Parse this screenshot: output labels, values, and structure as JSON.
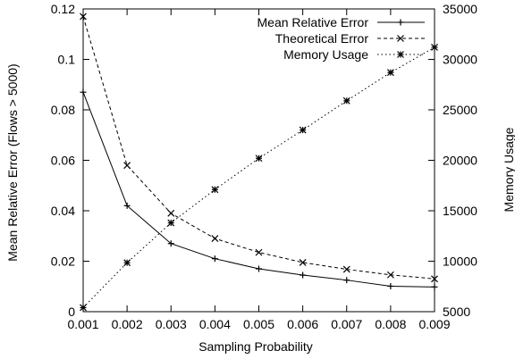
{
  "chart_data": {
    "type": "line",
    "title": "",
    "xlabel": "Sampling Probability",
    "ylabel": "Mean Relative Error (Flows > 5000)",
    "y2label": "Memory Usage",
    "x": [
      0.001,
      0.002,
      0.003,
      0.004,
      0.005,
      0.006,
      0.007,
      0.008,
      0.009
    ],
    "xlim": [
      0.001,
      0.009
    ],
    "ylim": [
      0,
      0.12
    ],
    "y2lim": [
      5000,
      35000
    ],
    "x_ticks": [
      "0.001",
      "0.002",
      "0.003",
      "0.004",
      "0.005",
      "0.006",
      "0.007",
      "0.008",
      "0.009"
    ],
    "y_ticks": [
      "0",
      "0.02",
      "0.04",
      "0.06",
      "0.08",
      "0.1",
      "0.12"
    ],
    "y2_ticks": [
      "5000",
      "10000",
      "15000",
      "20000",
      "25000",
      "30000",
      "35000"
    ],
    "legend_position": "top-right",
    "grid": false,
    "series": [
      {
        "name": "Mean Relative Error",
        "axis": "left",
        "line_style": "solid",
        "marker": "plus",
        "values": [
          0.087,
          0.042,
          0.027,
          0.021,
          0.017,
          0.0145,
          0.0125,
          0.0101,
          0.0098
        ]
      },
      {
        "name": "Theoretical Error",
        "axis": "left",
        "line_style": "dashed",
        "marker": "cross",
        "values": [
          0.117,
          0.058,
          0.039,
          0.029,
          0.0235,
          0.0195,
          0.0168,
          0.0146,
          0.013
        ]
      },
      {
        "name": "Memory Usage",
        "axis": "right",
        "line_style": "dotted",
        "marker": "star",
        "values": [
          5400,
          9850,
          13800,
          17100,
          20200,
          23000,
          25900,
          28700,
          31200
        ]
      }
    ]
  }
}
